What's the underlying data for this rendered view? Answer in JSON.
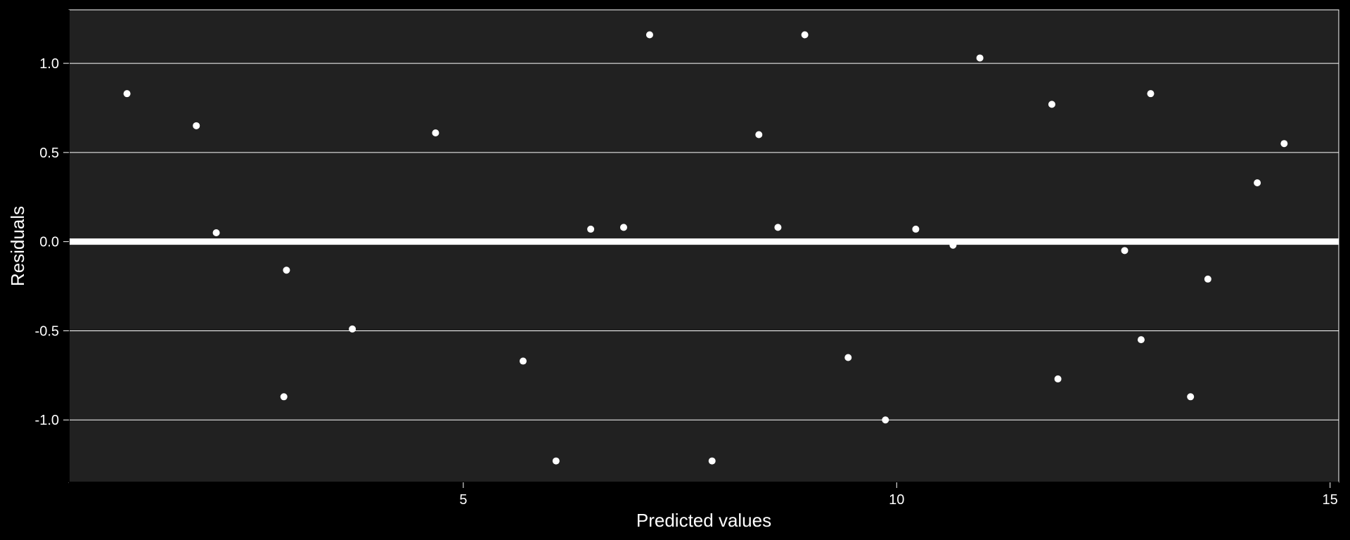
{
  "colors": {
    "background": "#000000",
    "panel": "#212121",
    "grid": "#ffffff",
    "points": "#ffffff",
    "reference_line": "#ffffff",
    "text": "#ffffff"
  },
  "chart_data": {
    "type": "scatter",
    "title": "",
    "xlabel": "Predicted values",
    "ylabel": "Residuals",
    "xlim": [
      0.45,
      15.1
    ],
    "ylim": [
      -1.35,
      1.3
    ],
    "x_ticks": [
      5,
      10,
      15
    ],
    "x_tick_labels": [
      "5",
      "10",
      "15"
    ],
    "y_ticks": [
      -1.0,
      -0.5,
      0.0,
      0.5,
      1.0
    ],
    "y_tick_labels": [
      "-1.0",
      "-0.5",
      "0.0",
      "0.5",
      "1.0"
    ],
    "grid": "horizontal major",
    "reference_line_y": 0,
    "points": [
      {
        "x": 1.12,
        "y": 0.83
      },
      {
        "x": 1.92,
        "y": 0.65
      },
      {
        "x": 2.15,
        "y": 0.05
      },
      {
        "x": 2.93,
        "y": -0.87
      },
      {
        "x": 2.96,
        "y": -0.16
      },
      {
        "x": 3.72,
        "y": -0.49
      },
      {
        "x": 4.68,
        "y": 0.61
      },
      {
        "x": 5.69,
        "y": -0.67
      },
      {
        "x": 6.07,
        "y": -1.23
      },
      {
        "x": 6.47,
        "y": 0.07
      },
      {
        "x": 6.85,
        "y": 0.08
      },
      {
        "x": 7.15,
        "y": 1.16
      },
      {
        "x": 7.87,
        "y": -1.23
      },
      {
        "x": 8.41,
        "y": 0.6
      },
      {
        "x": 8.63,
        "y": 0.08
      },
      {
        "x": 8.94,
        "y": 1.16
      },
      {
        "x": 9.44,
        "y": -0.65
      },
      {
        "x": 9.87,
        "y": -1.0
      },
      {
        "x": 10.22,
        "y": 0.07
      },
      {
        "x": 10.65,
        "y": -0.02
      },
      {
        "x": 10.96,
        "y": 1.03
      },
      {
        "x": 11.79,
        "y": 0.77
      },
      {
        "x": 11.86,
        "y": -0.77
      },
      {
        "x": 12.63,
        "y": -0.05
      },
      {
        "x": 12.82,
        "y": -0.55
      },
      {
        "x": 12.93,
        "y": 0.83
      },
      {
        "x": 13.39,
        "y": -0.87
      },
      {
        "x": 13.59,
        "y": -0.21
      },
      {
        "x": 14.16,
        "y": 0.33
      },
      {
        "x": 14.47,
        "y": 0.55
      }
    ]
  }
}
